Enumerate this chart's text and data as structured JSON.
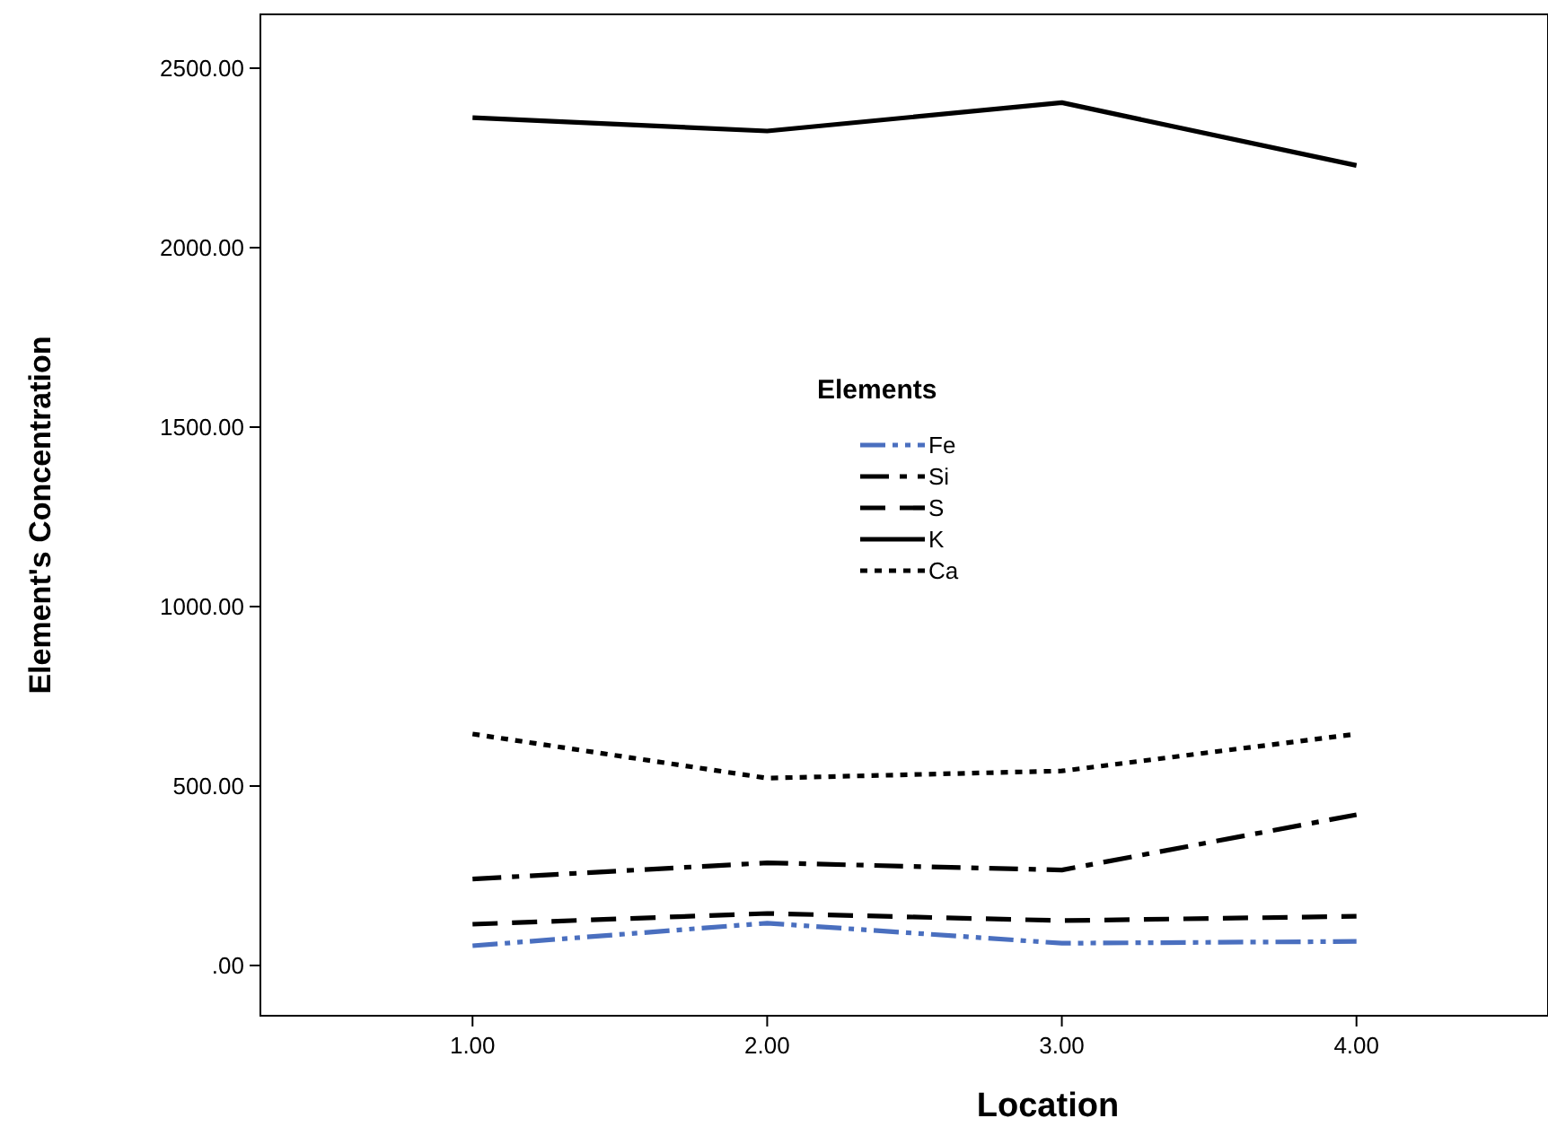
{
  "chart_data": {
    "type": "line",
    "xlabel": "Location",
    "ylabel": "Element's Concentration",
    "legend_title": "Elements",
    "legend": "center",
    "x": [
      1,
      2,
      3,
      4
    ],
    "xlim": [
      0.28,
      4.65
    ],
    "xticks": [
      {
        "value": 1,
        "label": "1.00"
      },
      {
        "value": 2,
        "label": "2.00"
      },
      {
        "value": 3,
        "label": "3.00"
      },
      {
        "value": 4,
        "label": "4.00"
      }
    ],
    "ylim": [
      -140,
      2650
    ],
    "yticks": [
      {
        "value": 0,
        "label": ".00"
      },
      {
        "value": 500,
        "label": "500.00"
      },
      {
        "value": 1000,
        "label": "1000.00"
      },
      {
        "value": 1500,
        "label": "1500.00"
      },
      {
        "value": 2000,
        "label": "2000.00"
      },
      {
        "value": 2500,
        "label": "2500.00"
      }
    ],
    "grid": false,
    "series": [
      {
        "name": "Fe",
        "color": "#4a6fbf",
        "line_style": "dashdotdot",
        "values": [
          55,
          118,
          62,
          67
        ]
      },
      {
        "name": "Si",
        "color": "#000000",
        "line_style": "dashdot",
        "values": [
          241,
          286,
          266,
          420
        ]
      },
      {
        "name": "S",
        "color": "#000000",
        "line_style": "dashed",
        "values": [
          115,
          145,
          125,
          137
        ]
      },
      {
        "name": "K",
        "color": "#000000",
        "line_style": "solid",
        "values": [
          2362,
          2325,
          2404,
          2229
        ]
      },
      {
        "name": "Ca",
        "color": "#000000",
        "line_style": "dotted",
        "values": [
          645,
          522,
          542,
          645
        ]
      }
    ]
  }
}
